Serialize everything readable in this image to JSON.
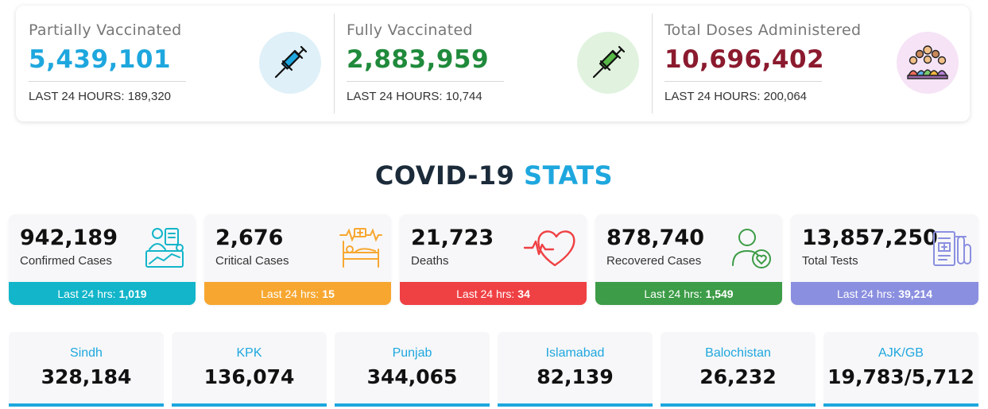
{
  "vaccination": [
    {
      "label": "Partially Vaccinated",
      "value": "5,439,101",
      "last_key": "LAST 24 HOURS:",
      "last_value": "189,320",
      "color": "#1ea7de",
      "icon": "syringe-icon",
      "icon_bg": "#dff0f8"
    },
    {
      "label": "Fully Vaccinated",
      "value": "2,883,959",
      "last_key": "LAST 24 HOURS:",
      "last_value": "10,744",
      "color": "#1f8a3b",
      "icon": "syringe-icon",
      "icon_bg": "#e1f3df"
    },
    {
      "label": "Total Doses Administered",
      "value": "10,696,402",
      "last_key": "LAST 24 HOURS:",
      "last_value": "200,064",
      "color": "#8b1a2e",
      "icon": "crowd-icon",
      "icon_bg": "#f6e3f6"
    }
  ],
  "heading": {
    "part1": "COVID-19",
    "part2": "STATS"
  },
  "stats": [
    {
      "value": "942,189",
      "label": "Confirmed Cases",
      "band_key": "Last 24 hrs:",
      "band_value": "1,019",
      "color": "#12b5c9",
      "icon": "confirmed-cases-icon"
    },
    {
      "value": "2,676",
      "label": "Critical Cases",
      "band_key": "Last 24 hrs:",
      "band_value": "15",
      "color": "#f7a730",
      "icon": "hospital-bed-icon"
    },
    {
      "value": "21,723",
      "label": "Deaths",
      "band_key": "Last 24 hrs:",
      "band_value": "34",
      "color": "#ef4144",
      "icon": "heartbeat-icon"
    },
    {
      "value": "878,740",
      "label": "Recovered Cases",
      "band_key": "Last 24 hrs:",
      "band_value": "1,549",
      "color": "#3d9c47",
      "icon": "recovered-person-icon"
    },
    {
      "value": "13,857,250",
      "label": "Total Tests",
      "band_key": "Last 24 hrs:",
      "band_value": "39,214",
      "color": "#8a8fe0",
      "icon": "test-tubes-icon"
    }
  ],
  "provinces": [
    {
      "name": "Sindh",
      "value": "328,184"
    },
    {
      "name": "KPK",
      "value": "136,074"
    },
    {
      "name": "Punjab",
      "value": "344,065"
    },
    {
      "name": "Islamabad",
      "value": "82,139"
    },
    {
      "name": "Balochistan",
      "value": "26,232"
    },
    {
      "name": "AJK/GB",
      "value": "19,783/5,712"
    }
  ]
}
